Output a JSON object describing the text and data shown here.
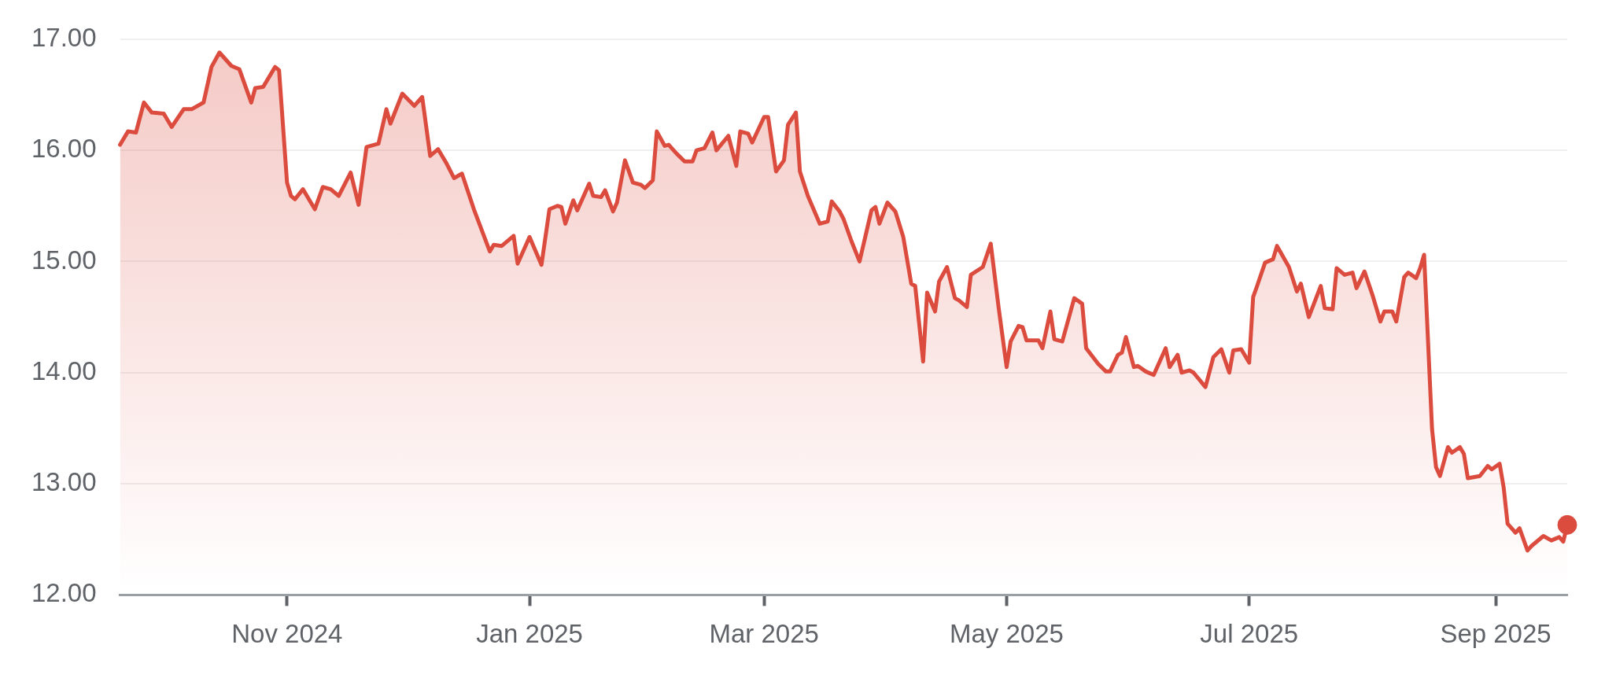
{
  "chart_data": {
    "type": "area",
    "xlim": [
      "2024-09-20",
      "2025-09-19"
    ],
    "xticks": [
      {
        "value": "2024-11-01",
        "label": "Nov 2024"
      },
      {
        "value": "2025-01-01",
        "label": "Jan 2025"
      },
      {
        "value": "2025-03-01",
        "label": "Mar 2025"
      },
      {
        "value": "2025-05-01",
        "label": "May 2025"
      },
      {
        "value": "2025-07-01",
        "label": "Jul 2025"
      },
      {
        "value": "2025-09-01",
        "label": "Sep 2025"
      }
    ],
    "ylim": [
      12,
      17
    ],
    "yticks": [
      {
        "value": 12,
        "label": "12.00"
      },
      {
        "value": 13,
        "label": "13.00"
      },
      {
        "value": 14,
        "label": "14.00"
      },
      {
        "value": 15,
        "label": "15.00"
      },
      {
        "value": 16,
        "label": "16.00"
      },
      {
        "value": 17,
        "label": "17.00"
      }
    ],
    "grid": "y",
    "legend": false,
    "line_style": "solid",
    "series": [
      {
        "color": "#db4c3f",
        "marker": "none",
        "x": [
          "2024-09-20",
          "2024-09-22",
          "2024-09-24",
          "2024-09-26",
          "2024-09-28",
          "2024-10-01",
          "2024-10-03",
          "2024-10-06",
          "2024-10-08",
          "2024-10-11",
          "2024-10-13",
          "2024-10-15",
          "2024-10-18",
          "2024-10-20",
          "2024-10-23",
          "2024-10-24",
          "2024-10-26",
          "2024-10-29",
          "2024-10-30",
          "2024-11-01",
          "2024-11-02",
          "2024-11-03",
          "2024-11-05",
          "2024-11-08",
          "2024-11-10",
          "2024-11-12",
          "2024-11-14",
          "2024-11-17",
          "2024-11-19",
          "2024-11-21",
          "2024-11-24",
          "2024-11-26",
          "2024-11-27",
          "2024-11-30",
          "2024-12-03",
          "2024-12-05",
          "2024-12-07",
          "2024-12-09",
          "2024-12-11",
          "2024-12-13",
          "2024-12-15",
          "2024-12-18",
          "2024-12-22",
          "2024-12-23",
          "2024-12-25",
          "2024-12-28",
          "2024-12-29",
          "2025-01-01",
          "2025-01-04",
          "2025-01-06",
          "2025-01-08",
          "2025-01-09",
          "2025-01-10",
          "2025-01-12",
          "2025-01-13",
          "2025-01-16",
          "2025-01-17",
          "2025-01-19",
          "2025-01-20",
          "2025-01-22",
          "2025-01-23",
          "2025-01-25",
          "2025-01-27",
          "2025-01-29",
          "2025-01-30",
          "2025-02-01",
          "2025-02-02",
          "2025-02-04",
          "2025-02-05",
          "2025-02-07",
          "2025-02-09",
          "2025-02-11",
          "2025-02-12",
          "2025-02-14",
          "2025-02-16",
          "2025-02-17",
          "2025-02-20",
          "2025-02-22",
          "2025-02-23",
          "2025-02-25",
          "2025-02-26",
          "2025-03-01",
          "2025-03-02",
          "2025-03-04",
          "2025-03-06",
          "2025-03-07",
          "2025-03-09",
          "2025-03-10",
          "2025-03-12",
          "2025-03-15",
          "2025-03-17",
          "2025-03-18",
          "2025-03-20",
          "2025-03-21",
          "2025-03-23",
          "2025-03-25",
          "2025-03-28",
          "2025-03-29",
          "2025-03-30",
          "2025-04-01",
          "2025-04-03",
          "2025-04-05",
          "2025-04-07",
          "2025-04-08",
          "2025-04-10",
          "2025-04-11",
          "2025-04-13",
          "2025-04-14",
          "2025-04-16",
          "2025-04-18",
          "2025-04-19",
          "2025-04-21",
          "2025-04-22",
          "2025-04-25",
          "2025-04-27",
          "2025-04-29",
          "2025-05-01",
          "2025-05-02",
          "2025-05-04",
          "2025-05-05",
          "2025-05-06",
          "2025-05-09",
          "2025-05-10",
          "2025-05-12",
          "2025-05-13",
          "2025-05-15",
          "2025-05-18",
          "2025-05-20",
          "2025-05-21",
          "2025-05-24",
          "2025-05-26",
          "2025-05-27",
          "2025-05-29",
          "2025-05-30",
          "2025-05-31",
          "2025-06-02",
          "2025-06-03",
          "2025-06-05",
          "2025-06-07",
          "2025-06-10",
          "2025-06-11",
          "2025-06-13",
          "2025-06-14",
          "2025-06-16",
          "2025-06-17",
          "2025-06-20",
          "2025-06-22",
          "2025-06-24",
          "2025-06-26",
          "2025-06-27",
          "2025-06-29",
          "2025-07-01",
          "2025-07-02",
          "2025-07-03",
          "2025-07-05",
          "2025-07-07",
          "2025-07-08",
          "2025-07-11",
          "2025-07-13",
          "2025-07-14",
          "2025-07-16",
          "2025-07-19",
          "2025-07-20",
          "2025-07-22",
          "2025-07-23",
          "2025-07-25",
          "2025-07-27",
          "2025-07-28",
          "2025-07-30",
          "2025-08-01",
          "2025-08-03",
          "2025-08-04",
          "2025-08-06",
          "2025-08-07",
          "2025-08-09",
          "2025-08-10",
          "2025-08-12",
          "2025-08-13",
          "2025-08-14",
          "2025-08-16",
          "2025-08-17",
          "2025-08-18",
          "2025-08-20",
          "2025-08-21",
          "2025-08-23",
          "2025-08-24",
          "2025-08-25",
          "2025-08-28",
          "2025-08-30",
          "2025-08-31",
          "2025-09-02",
          "2025-09-03",
          "2025-09-04",
          "2025-09-06",
          "2025-09-07",
          "2025-09-09",
          "2025-09-10",
          "2025-09-13",
          "2025-09-15",
          "2025-09-17",
          "2025-09-18",
          "2025-09-19"
        ],
        "values": [
          16.05,
          16.17,
          16.16,
          16.43,
          16.34,
          16.33,
          16.21,
          16.37,
          16.37,
          16.43,
          16.75,
          16.88,
          16.76,
          16.73,
          16.43,
          16.56,
          16.57,
          16.75,
          16.72,
          15.71,
          15.59,
          15.56,
          15.65,
          15.47,
          15.67,
          15.65,
          15.59,
          15.8,
          15.51,
          16.03,
          16.06,
          16.37,
          16.24,
          16.51,
          16.4,
          16.48,
          15.95,
          16.01,
          15.89,
          15.75,
          15.79,
          15.47,
          15.09,
          15.15,
          15.14,
          15.23,
          14.98,
          15.22,
          14.97,
          15.47,
          15.5,
          15.49,
          15.34,
          15.55,
          15.46,
          15.7,
          15.59,
          15.58,
          15.64,
          15.45,
          15.53,
          15.91,
          15.71,
          15.69,
          15.66,
          15.73,
          16.17,
          16.04,
          16.05,
          15.97,
          15.9,
          15.9,
          16.0,
          16.02,
          16.16,
          16.0,
          16.13,
          15.86,
          16.17,
          16.15,
          16.07,
          16.3,
          16.3,
          15.81,
          15.91,
          16.23,
          16.34,
          15.81,
          15.59,
          15.34,
          15.36,
          15.54,
          15.45,
          15.38,
          15.18,
          15.0,
          15.46,
          15.49,
          15.34,
          15.53,
          15.45,
          15.22,
          14.8,
          14.78,
          14.1,
          14.72,
          14.55,
          14.82,
          14.95,
          14.67,
          14.65,
          14.59,
          14.88,
          14.95,
          15.16,
          14.58,
          14.05,
          14.28,
          14.42,
          14.41,
          14.29,
          14.29,
          14.22,
          14.55,
          14.3,
          14.28,
          14.67,
          14.62,
          14.22,
          14.08,
          14.01,
          14.01,
          14.16,
          14.18,
          14.32,
          14.05,
          14.06,
          14.01,
          13.98,
          14.22,
          14.05,
          14.16,
          14.0,
          14.02,
          14.0,
          13.87,
          14.14,
          14.21,
          14.0,
          14.2,
          14.21,
          14.09,
          14.68,
          14.78,
          14.99,
          15.02,
          15.14,
          14.95,
          14.73,
          14.8,
          14.5,
          14.78,
          14.58,
          14.57,
          14.94,
          14.88,
          14.9,
          14.76,
          14.91,
          14.7,
          14.46,
          14.55,
          14.55,
          14.46,
          14.86,
          14.9,
          14.85,
          14.94,
          15.06,
          13.49,
          13.15,
          13.07,
          13.33,
          13.28,
          13.33,
          13.27,
          13.05,
          13.07,
          13.16,
          13.13,
          13.18,
          12.97,
          12.64,
          12.56,
          12.6,
          12.4,
          12.44,
          12.53,
          12.49,
          12.52,
          12.48,
          12.63
        ]
      },
      {
        "type": "scatter",
        "color": "#db4c3f",
        "marker": "circle",
        "x": [
          "2025-09-19"
        ],
        "values": [
          12.63
        ]
      }
    ]
  }
}
